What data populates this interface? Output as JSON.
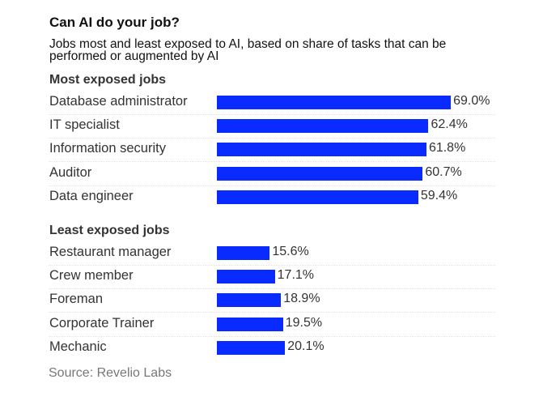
{
  "chart_data": {
    "type": "bar",
    "orientation": "horizontal",
    "title": "Can AI do your job?",
    "subtitle": "Jobs most and least exposed to AI, based on share of tasks that can be performed or augmented by AI",
    "groups": [
      {
        "name": "Most exposed jobs",
        "categories": [
          "Database administrator",
          "IT specialist",
          "Information security",
          "Auditor",
          "Data engineer"
        ],
        "values": [
          69.0,
          62.4,
          61.8,
          60.7,
          59.4
        ],
        "labels": [
          "69.0%",
          "62.4%",
          "61.8%",
          "60.7%",
          "59.4%"
        ]
      },
      {
        "name": "Least exposed jobs",
        "categories": [
          "Restaurant manager",
          "Crew member",
          "Foreman",
          "Corporate Trainer",
          "Mechanic"
        ],
        "values": [
          15.6,
          17.1,
          18.9,
          19.5,
          20.1
        ],
        "labels": [
          "15.6%",
          "17.1%",
          "18.9%",
          "19.5%",
          "20.1%"
        ]
      }
    ],
    "unit": "%",
    "bar_color": "#0a2bff",
    "grid": false,
    "source": "Source: Revelio Labs"
  }
}
